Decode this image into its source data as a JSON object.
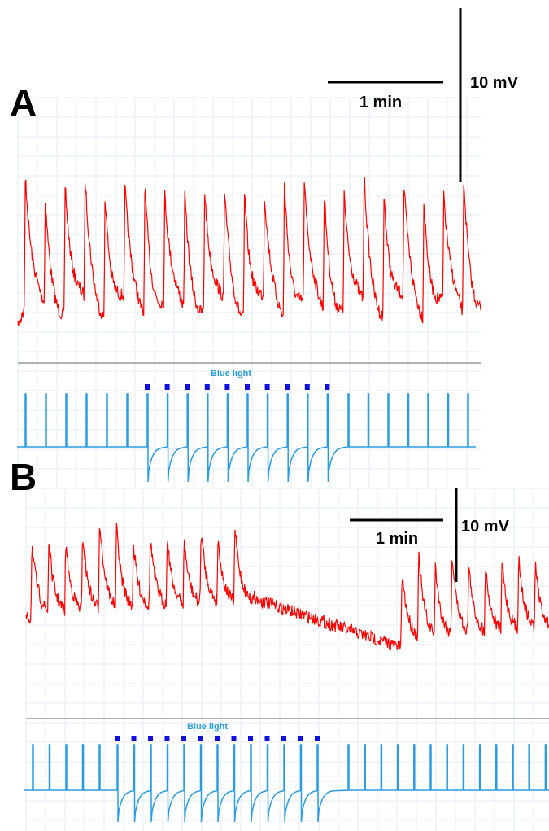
{
  "panels": [
    {
      "label": "A",
      "scale_time": "1 min",
      "scale_voltage": "10 mV",
      "stimulus_label": "Blue light"
    },
    {
      "label": "B",
      "scale_time": "1 min",
      "scale_voltage": "10 mV",
      "stimulus_label": "Blue light"
    }
  ]
}
